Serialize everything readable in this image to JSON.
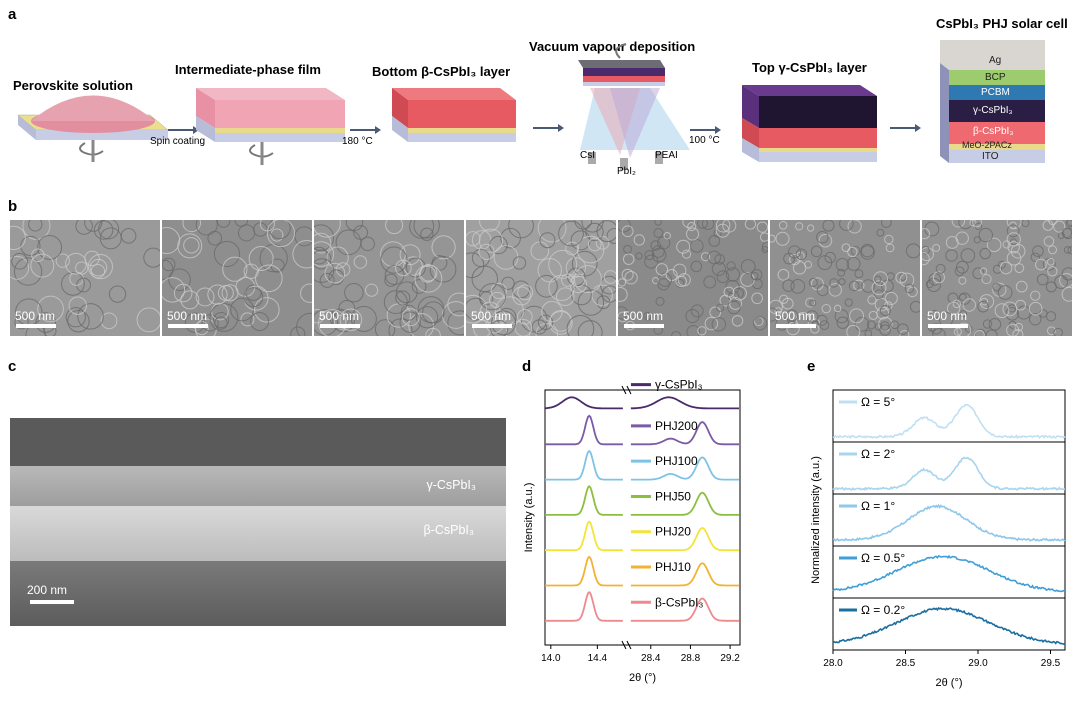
{
  "panels": {
    "a": "a",
    "b": "b",
    "c": "c",
    "d": "d",
    "e": "e"
  },
  "panel_a": {
    "steps": [
      "Perovskite solution",
      "Intermediate-phase film",
      "Bottom β-CsPbI₃ layer",
      "Vacuum vapour deposition",
      "Top γ-CsPbI₃ layer",
      "CsPbI₃ PHJ solar cell"
    ],
    "arrows": [
      "Spin coating",
      "180 °C",
      "",
      "100 °C",
      ""
    ],
    "sources": [
      "CsI",
      "PbI₂",
      "PEAI"
    ],
    "device_layers": [
      "Ag",
      "BCP",
      "PCBM",
      "γ-CsPbI₃",
      "β-CsPbI₃",
      "MeO-2PACz",
      "ITO"
    ]
  },
  "panel_b": {
    "scale_label": "500 nm"
  },
  "panel_c": {
    "top_label": "γ-CsPbI₃",
    "bottom_label": "β-CsPbI₃",
    "scale_label": "200 nm"
  },
  "chart_data": [
    {
      "id": "d",
      "type": "line",
      "xlabel": "2θ (°)",
      "ylabel": "Intensity (a.u.)",
      "x_ticks_left": [
        14.0,
        14.4
      ],
      "x_ticks_right": [
        28.4,
        28.8,
        29.2
      ],
      "axis_break": true,
      "series": [
        {
          "name": "γ-CsPbI₃",
          "color": "#4a2a6b"
        },
        {
          "name": "PHJ200",
          "color": "#7b5aa6"
        },
        {
          "name": "PHJ100",
          "color": "#7ec3e6"
        },
        {
          "name": "PHJ50",
          "color": "#8cbf3f"
        },
        {
          "name": "PHJ20",
          "color": "#f3e43a"
        },
        {
          "name": "PHJ10",
          "color": "#f2b233"
        },
        {
          "name": "β-CsPbI₃",
          "color": "#ee8a8e"
        }
      ]
    },
    {
      "id": "e",
      "type": "line",
      "xlabel": "2θ (°)",
      "ylabel": "Normalized intensity (a.u.)",
      "x_ticks": [
        28.0,
        28.5,
        29.0,
        29.5
      ],
      "xlim": [
        28.0,
        29.6
      ],
      "series": [
        {
          "name": "Ω = 5°",
          "color": "#bfe0f3"
        },
        {
          "name": "Ω = 2°",
          "color": "#a8d4ee"
        },
        {
          "name": "Ω = 1°",
          "color": "#8ec7ea"
        },
        {
          "name": "Ω = 0.5°",
          "color": "#3f9fd6"
        },
        {
          "name": "Ω = 0.2°",
          "color": "#1a6f9f"
        }
      ]
    }
  ]
}
